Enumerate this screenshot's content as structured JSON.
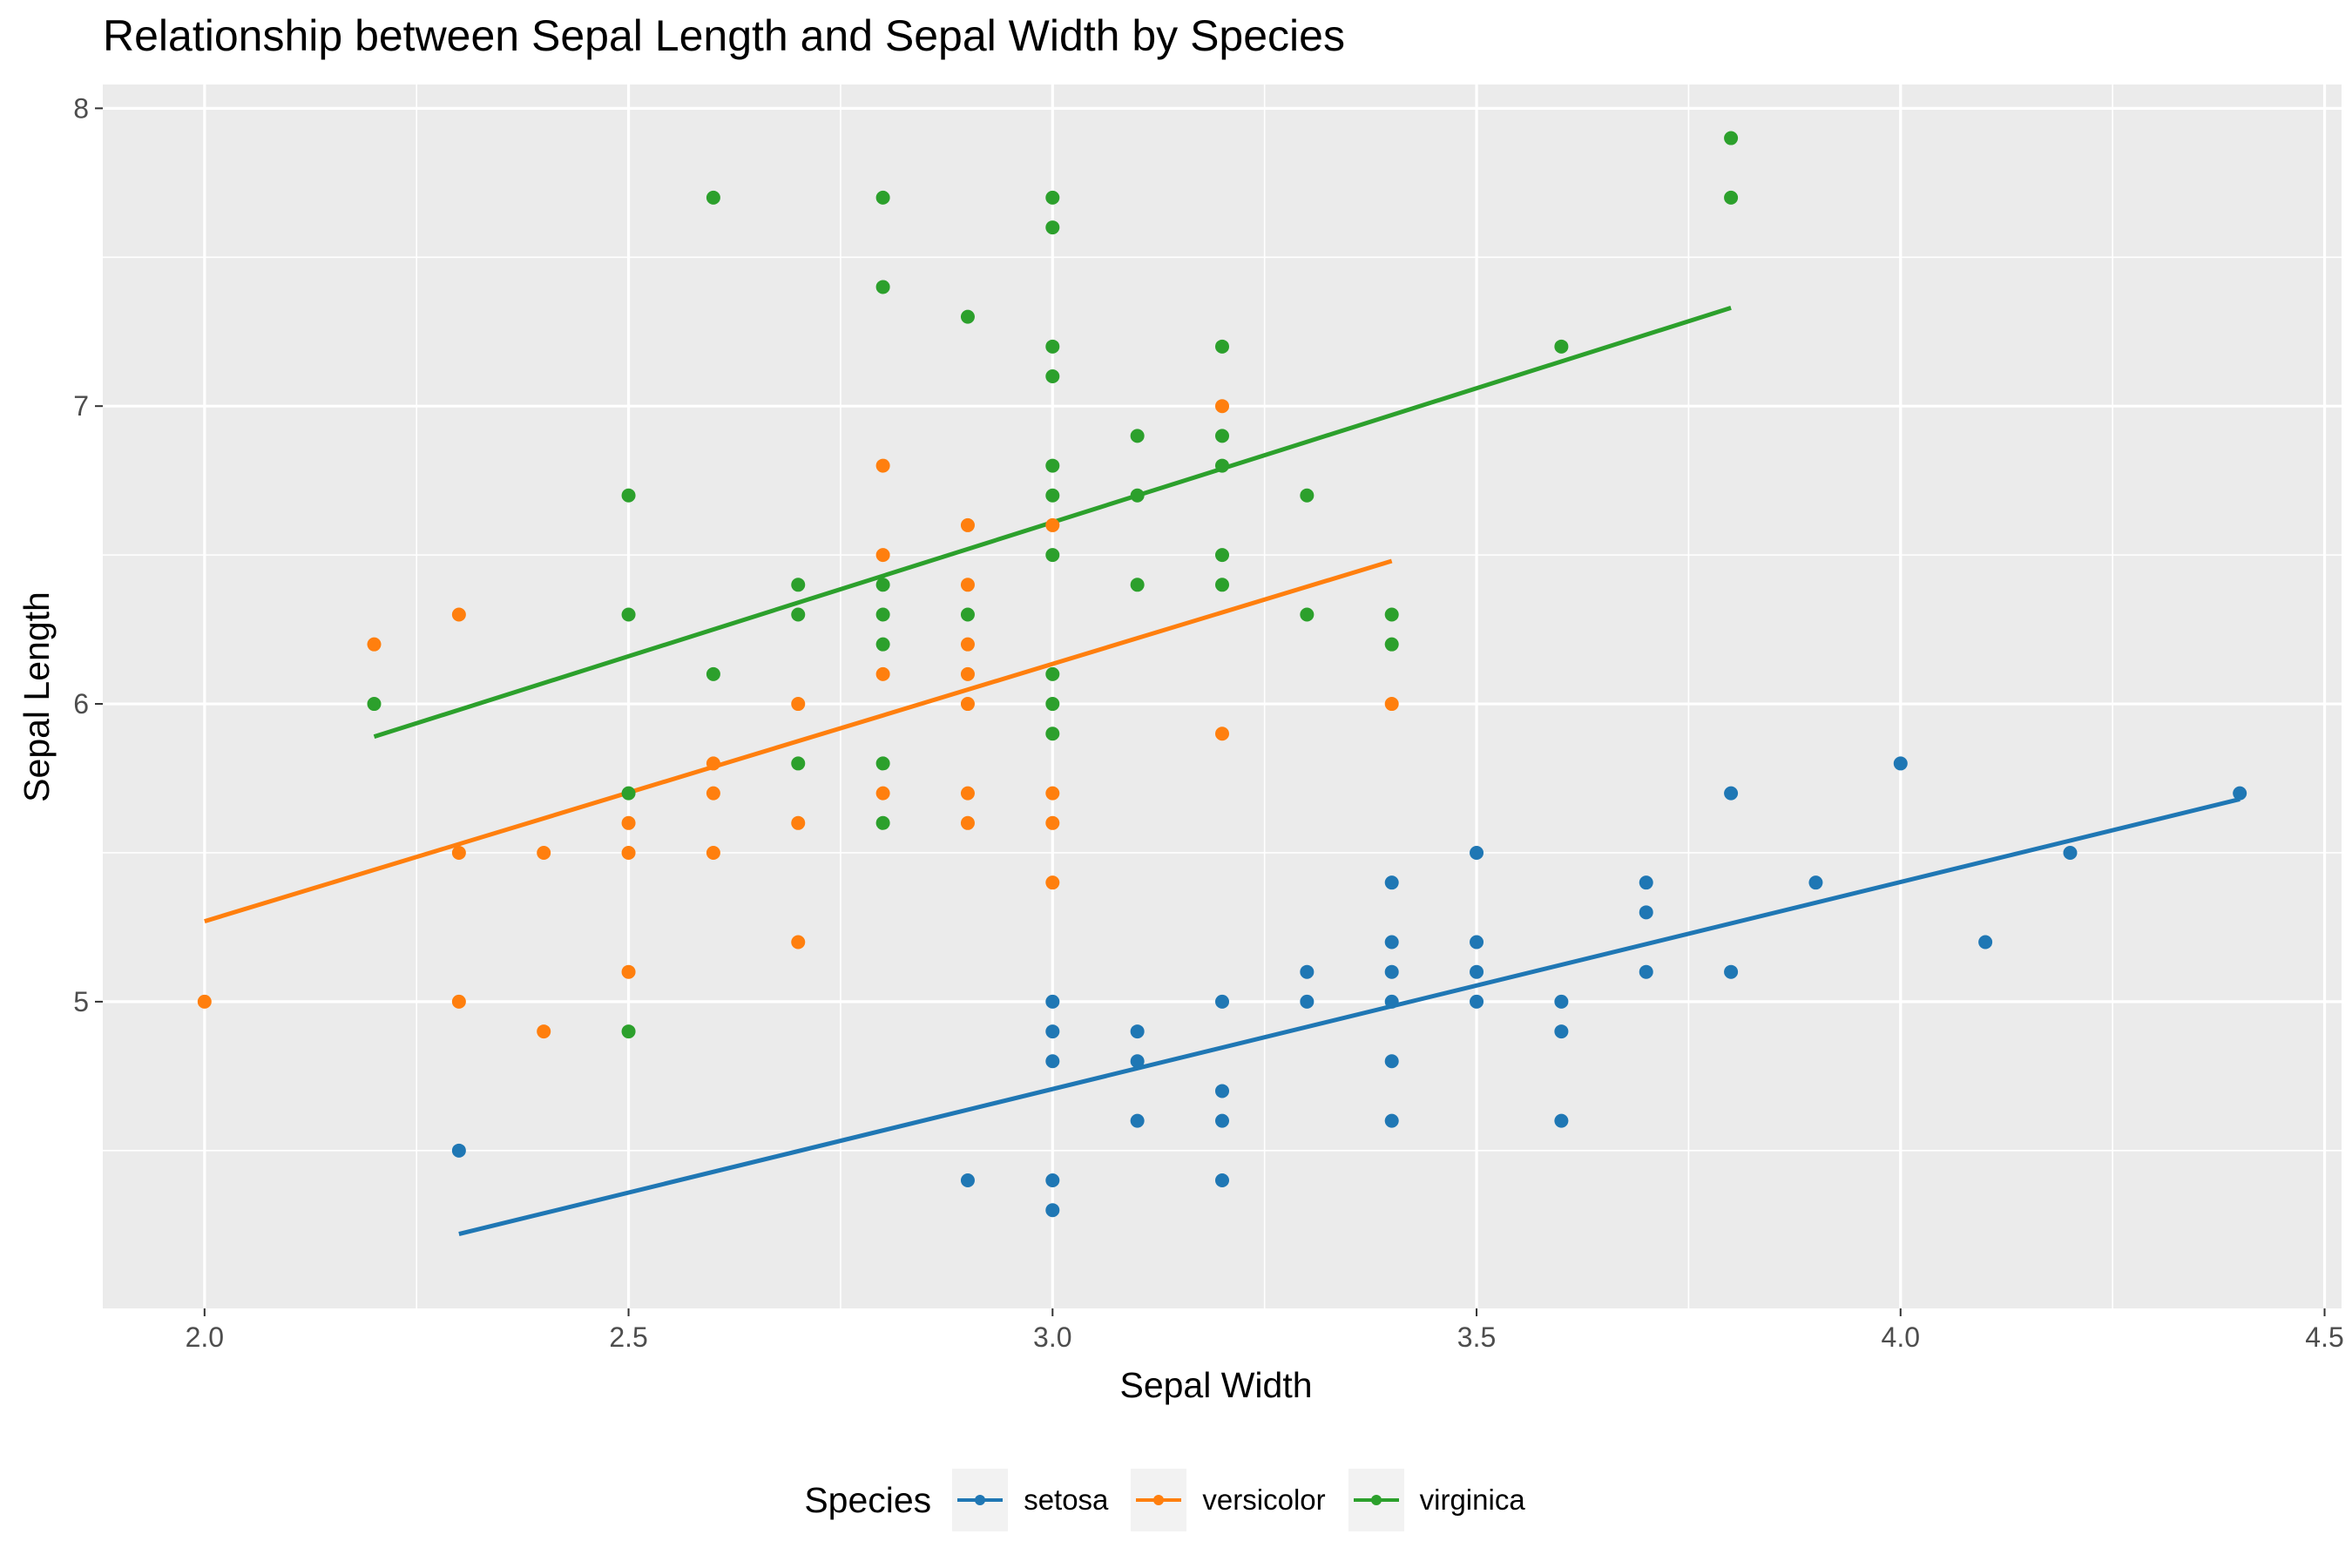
{
  "chart_data": {
    "type": "scatter",
    "title": "Relationship between Sepal Length and Sepal Width by Species",
    "xlabel": "Sepal Width",
    "ylabel": "Sepal Length",
    "xlim": [
      1.88,
      4.52
    ],
    "ylim": [
      3.97,
      8.08
    ],
    "x_ticks": [
      2.0,
      2.5,
      3.0,
      3.5,
      4.0,
      4.5
    ],
    "x_tick_labels": [
      "2.0",
      "2.5",
      "3.0",
      "3.5",
      "4.0",
      "4.5"
    ],
    "y_ticks": [
      5,
      6,
      7,
      8
    ],
    "y_tick_labels": [
      "5",
      "6",
      "7",
      "8"
    ],
    "grid": true,
    "legend": {
      "title": "Species",
      "position": "bottom"
    },
    "series": [
      {
        "name": "setosa",
        "color": "#1f77b4",
        "points": [
          [
            2.3,
            4.5
          ],
          [
            2.9,
            4.4
          ],
          [
            3.0,
            4.3
          ],
          [
            3.0,
            4.4
          ],
          [
            3.0,
            4.8
          ],
          [
            3.0,
            4.9
          ],
          [
            3.0,
            5.0
          ],
          [
            3.1,
            4.6
          ],
          [
            3.1,
            4.8
          ],
          [
            3.1,
            4.9
          ],
          [
            3.2,
            4.4
          ],
          [
            3.2,
            4.6
          ],
          [
            3.2,
            4.7
          ],
          [
            3.2,
            5.0
          ],
          [
            3.3,
            5.0
          ],
          [
            3.3,
            5.1
          ],
          [
            3.4,
            4.6
          ],
          [
            3.4,
            4.8
          ],
          [
            3.4,
            5.0
          ],
          [
            3.4,
            5.1
          ],
          [
            3.4,
            5.2
          ],
          [
            3.4,
            5.4
          ],
          [
            3.5,
            5.0
          ],
          [
            3.5,
            5.1
          ],
          [
            3.5,
            5.2
          ],
          [
            3.5,
            5.5
          ],
          [
            3.6,
            4.6
          ],
          [
            3.6,
            4.9
          ],
          [
            3.6,
            5.0
          ],
          [
            3.7,
            5.1
          ],
          [
            3.7,
            5.3
          ],
          [
            3.7,
            5.4
          ],
          [
            3.8,
            5.1
          ],
          [
            3.8,
            5.7
          ],
          [
            3.9,
            5.4
          ],
          [
            4.0,
            5.8
          ],
          [
            4.1,
            5.2
          ],
          [
            4.2,
            5.5
          ],
          [
            4.4,
            5.7
          ]
        ],
        "trend": [
          [
            2.3,
            4.22
          ],
          [
            4.4,
            5.68
          ]
        ]
      },
      {
        "name": "versicolor",
        "color": "#ff7f0e",
        "points": [
          [
            2.0,
            5.0
          ],
          [
            2.2,
            6.2
          ],
          [
            2.3,
            5.0
          ],
          [
            2.3,
            5.5
          ],
          [
            2.3,
            6.3
          ],
          [
            2.4,
            4.9
          ],
          [
            2.4,
            5.5
          ],
          [
            2.5,
            5.1
          ],
          [
            2.5,
            5.5
          ],
          [
            2.5,
            5.6
          ],
          [
            2.6,
            5.5
          ],
          [
            2.6,
            5.7
          ],
          [
            2.6,
            5.8
          ],
          [
            2.7,
            5.2
          ],
          [
            2.7,
            5.6
          ],
          [
            2.7,
            6.0
          ],
          [
            2.8,
            5.7
          ],
          [
            2.8,
            6.1
          ],
          [
            2.8,
            6.5
          ],
          [
            2.8,
            6.8
          ],
          [
            2.9,
            5.6
          ],
          [
            2.9,
            5.7
          ],
          [
            2.9,
            6.0
          ],
          [
            2.9,
            6.1
          ],
          [
            2.9,
            6.2
          ],
          [
            2.9,
            6.4
          ],
          [
            2.9,
            6.6
          ],
          [
            3.0,
            5.4
          ],
          [
            3.0,
            5.6
          ],
          [
            3.0,
            5.7
          ],
          [
            3.0,
            6.6
          ],
          [
            3.2,
            5.9
          ],
          [
            3.2,
            7.0
          ],
          [
            3.4,
            6.0
          ]
        ],
        "trend": [
          [
            2.0,
            5.27
          ],
          [
            3.4,
            6.48
          ]
        ]
      },
      {
        "name": "virginica",
        "color": "#2ca02c",
        "points": [
          [
            2.2,
            6.0
          ],
          [
            2.5,
            4.9
          ],
          [
            2.5,
            5.7
          ],
          [
            2.5,
            6.3
          ],
          [
            2.5,
            6.7
          ],
          [
            2.6,
            6.1
          ],
          [
            2.6,
            7.7
          ],
          [
            2.7,
            5.8
          ],
          [
            2.7,
            6.3
          ],
          [
            2.7,
            6.4
          ],
          [
            2.8,
            5.6
          ],
          [
            2.8,
            5.8
          ],
          [
            2.8,
            6.2
          ],
          [
            2.8,
            6.3
          ],
          [
            2.8,
            6.4
          ],
          [
            2.8,
            7.4
          ],
          [
            2.8,
            7.7
          ],
          [
            2.9,
            6.3
          ],
          [
            2.9,
            7.3
          ],
          [
            3.0,
            5.9
          ],
          [
            3.0,
            6.0
          ],
          [
            3.0,
            6.1
          ],
          [
            3.0,
            6.5
          ],
          [
            3.0,
            6.7
          ],
          [
            3.0,
            6.8
          ],
          [
            3.0,
            7.1
          ],
          [
            3.0,
            7.2
          ],
          [
            3.0,
            7.6
          ],
          [
            3.0,
            7.7
          ],
          [
            3.1,
            6.4
          ],
          [
            3.1,
            6.7
          ],
          [
            3.1,
            6.9
          ],
          [
            3.2,
            6.4
          ],
          [
            3.2,
            6.5
          ],
          [
            3.2,
            6.8
          ],
          [
            3.2,
            6.9
          ],
          [
            3.2,
            7.2
          ],
          [
            3.3,
            6.3
          ],
          [
            3.3,
            6.7
          ],
          [
            3.4,
            6.2
          ],
          [
            3.4,
            6.3
          ],
          [
            3.6,
            7.2
          ],
          [
            3.8,
            7.7
          ],
          [
            3.8,
            7.9
          ]
        ],
        "trend": [
          [
            2.2,
            5.89
          ],
          [
            3.8,
            7.33
          ]
        ]
      }
    ]
  }
}
